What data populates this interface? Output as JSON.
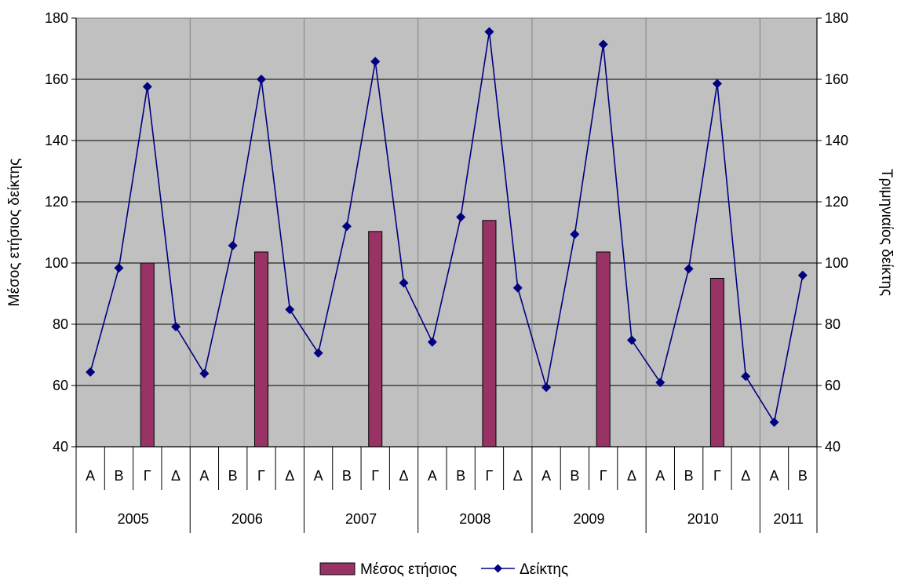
{
  "chart_data": {
    "type": "bar+line",
    "ylabel_left": "Μέσος ετήσιος δείκτης",
    "ylabel_right": "Τριμηνιαίος δείκτης",
    "ylim": [
      40,
      180
    ],
    "yticks": [
      40,
      60,
      80,
      100,
      120,
      140,
      160,
      180
    ],
    "grid": true,
    "quarters": [
      "Α",
      "Β",
      "Γ",
      "Δ",
      "Α",
      "Β",
      "Γ",
      "Δ",
      "Α",
      "Β",
      "Γ",
      "Δ",
      "Α",
      "Β",
      "Γ",
      "Δ",
      "Α",
      "Β",
      "Γ",
      "Δ",
      "Α",
      "Β",
      "Γ",
      "Δ",
      "Α",
      "Β"
    ],
    "years": [
      {
        "label": "2005",
        "quarters": 4
      },
      {
        "label": "2006",
        "quarters": 4
      },
      {
        "label": "2007",
        "quarters": 4
      },
      {
        "label": "2008",
        "quarters": 4
      },
      {
        "label": "2009",
        "quarters": 4
      },
      {
        "label": "2010",
        "quarters": 4
      },
      {
        "label": "2011",
        "quarters": 2
      }
    ],
    "series": [
      {
        "name": "Μέσος ετήσιος",
        "type": "bar",
        "color": "#993366",
        "values": [
          null,
          null,
          100,
          null,
          null,
          null,
          103.6,
          null,
          null,
          null,
          110.3,
          null,
          null,
          null,
          113.9,
          null,
          null,
          null,
          103.6,
          null,
          null,
          null,
          95,
          null,
          null,
          null
        ]
      },
      {
        "name": "Δείκτης",
        "type": "line",
        "color": "#000080",
        "marker": "diamond",
        "values": [
          64.4,
          98.4,
          157.6,
          79.2,
          63.9,
          105.7,
          160,
          84.8,
          70.6,
          112,
          165.8,
          93.5,
          74.2,
          115,
          175.5,
          91.9,
          59.4,
          109.4,
          171.4,
          74.8,
          61,
          98.1,
          158.6,
          63,
          48,
          96
        ]
      }
    ],
    "legend_position": "bottom-center"
  }
}
